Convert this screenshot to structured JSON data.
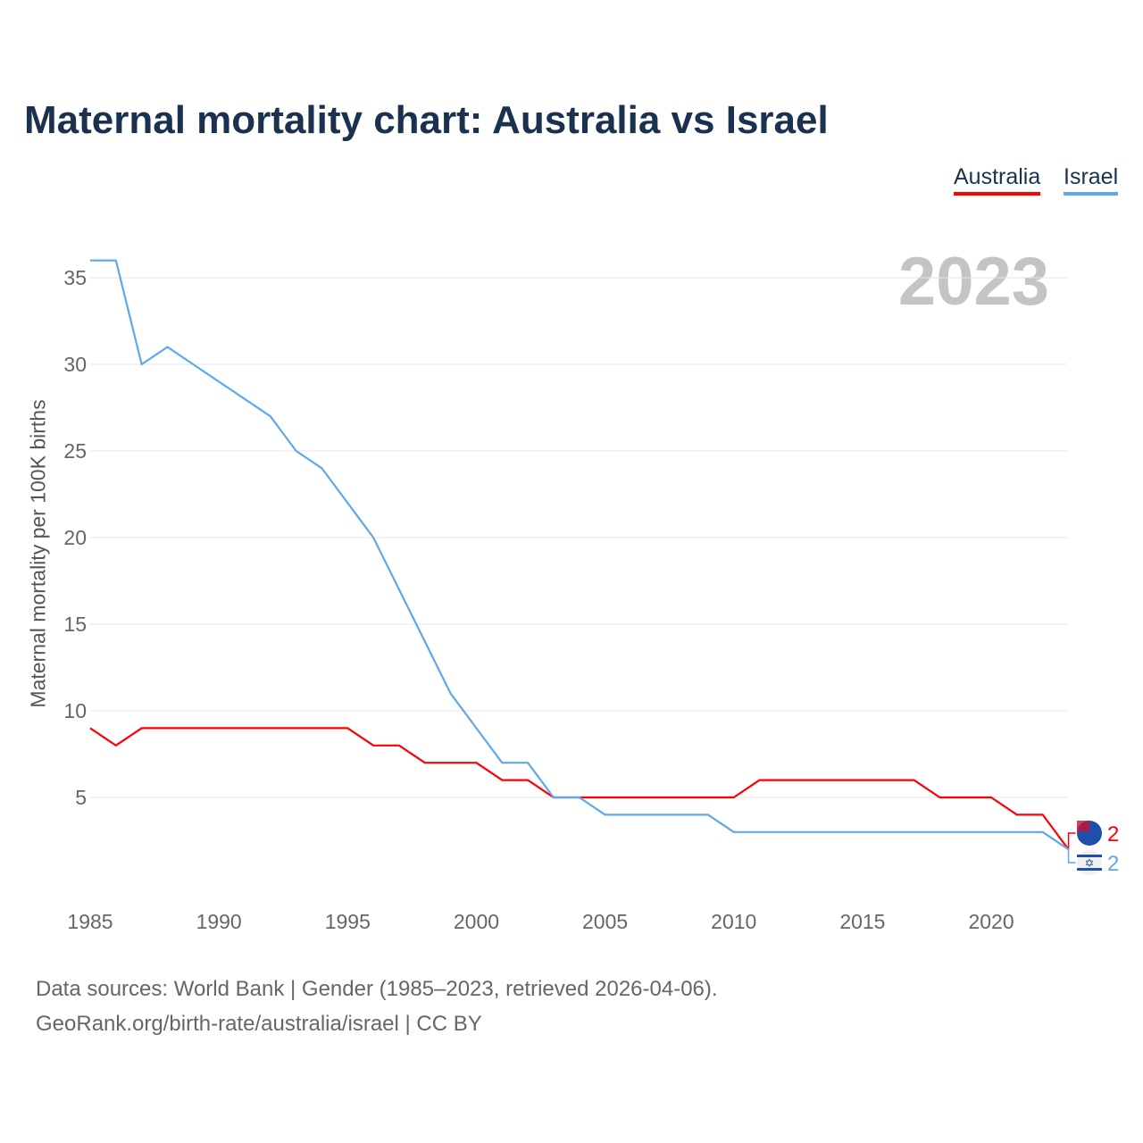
{
  "chart_data": {
    "type": "line",
    "title": "Maternal mortality chart: Australia vs Israel",
    "ylabel": "Maternal mortality per 100K births",
    "xlabel": "",
    "year_label": "2023",
    "x": [
      1985,
      1986,
      1987,
      1988,
      1989,
      1990,
      1991,
      1992,
      1993,
      1994,
      1995,
      1996,
      1997,
      1998,
      1999,
      2000,
      2001,
      2002,
      2003,
      2004,
      2005,
      2006,
      2007,
      2008,
      2009,
      2010,
      2011,
      2012,
      2013,
      2014,
      2015,
      2016,
      2017,
      2018,
      2019,
      2020,
      2021,
      2022,
      2023
    ],
    "series": [
      {
        "name": "Australia",
        "color": "#ff0000",
        "end_label": "2",
        "values": [
          9,
          8,
          9,
          9,
          9,
          9,
          9,
          9,
          9,
          9,
          9,
          8,
          8,
          7,
          7,
          7,
          6,
          6,
          5,
          5,
          5,
          5,
          5,
          5,
          5,
          5,
          6,
          6,
          6,
          6,
          6,
          6,
          6,
          5,
          5,
          5,
          4,
          4,
          2
        ]
      },
      {
        "name": "Israel",
        "color": "#5fa8ec",
        "end_label": "2",
        "values": [
          36,
          36,
          30,
          31,
          30,
          29,
          28,
          27,
          25,
          24,
          22,
          20,
          17,
          14,
          11,
          9,
          7,
          7,
          5,
          5,
          4,
          4,
          4,
          4,
          4,
          3,
          3,
          3,
          3,
          3,
          3,
          3,
          3,
          3,
          3,
          3,
          3,
          3,
          2
        ]
      }
    ],
    "xticks": [
      1985,
      1990,
      1995,
      2000,
      2005,
      2010,
      2015,
      2020
    ],
    "yticks": [
      5,
      10,
      15,
      20,
      25,
      30,
      35
    ],
    "xlim": [
      1985,
      2023
    ],
    "ylim": [
      0,
      36
    ],
    "grid": true,
    "legend": "top-right"
  },
  "source": {
    "line1": "Data sources: World Bank | Gender (1985–2023, retrieved 2026-04-06).",
    "line2": "GeoRank.org/birth-rate/australia/israel | CC BY"
  }
}
